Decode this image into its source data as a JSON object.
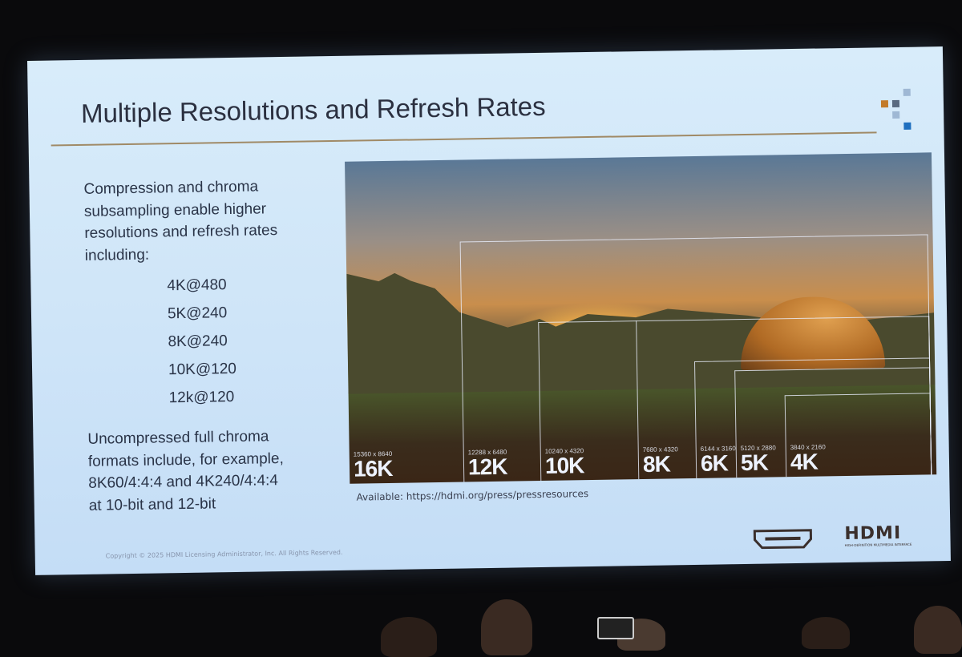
{
  "slide": {
    "title": "Multiple Resolutions and Refresh Rates",
    "intro": [
      "Compression and chroma",
      "subsampling enable higher",
      "resolutions and refresh rates",
      "including:"
    ],
    "rates": [
      "4K@480",
      "5K@240",
      "8K@240",
      "10K@120",
      "12k@120"
    ],
    "uncompressed": [
      "Uncompressed full chroma",
      "formats include, for example,",
      "8K60/4:4:4  and 4K240/4:4:4",
      "at 10-bit and 12-bit"
    ],
    "resolutions": [
      {
        "label": "16K",
        "pixels": "15360 x 8640"
      },
      {
        "label": "12K",
        "pixels": "12288 x 6480"
      },
      {
        "label": "10K",
        "pixels": "10240 x 4320"
      },
      {
        "label": "8K",
        "pixels": "7680 x 4320"
      },
      {
        "label": "6K",
        "pixels": "6144 x 3160"
      },
      {
        "label": "5K",
        "pixels": "5120 x 2880"
      },
      {
        "label": "4K",
        "pixels": "3840 x 2160"
      }
    ],
    "source": "Available: https://hdmi.org/press/pressresources",
    "copyright": "Copyright © 2025 HDMI Licensing Administrator, Inc.  All Rights Reserved.",
    "logo": "HDMI",
    "logo_tagline": "HIGH-DEFINITION MULTIMEDIA INTERFACE",
    "colors": {
      "rule": "#a08a66",
      "deco_orange": "#c27a2a",
      "deco_blue": "#1f6fbf"
    }
  }
}
